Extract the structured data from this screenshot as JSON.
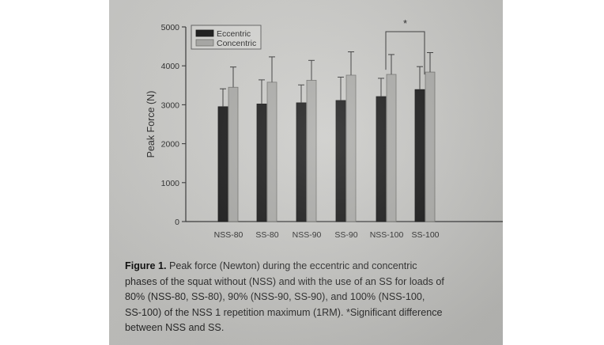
{
  "chart_data": {
    "type": "bar",
    "categories": [
      "NSS-80",
      "SS-80",
      "NSS-90",
      "SS-90",
      "NSS-100",
      "SS-100"
    ],
    "series": [
      {
        "name": "Eccentric",
        "values": [
          2950,
          3020,
          3050,
          3110,
          3210,
          3390
        ],
        "error": [
          460,
          620,
          460,
          600,
          470,
          590
        ],
        "color": "#151515"
      },
      {
        "name": "Concentric",
        "values": [
          3450,
          3580,
          3630,
          3760,
          3780,
          3840
        ],
        "error": [
          520,
          650,
          510,
          600,
          510,
          500
        ],
        "color": "#a9a9a6"
      }
    ],
    "ylabel": "Peak Force (N)",
    "xlabel": "",
    "ylim": [
      0,
      5000
    ],
    "yticks": [
      0,
      1000,
      2000,
      3000,
      4000,
      5000
    ],
    "legend_position": "top-left",
    "grid": false,
    "annotations": [
      {
        "text": "*",
        "between": [
          "NSS-100",
          "SS-100"
        ]
      }
    ]
  },
  "caption": {
    "label": "Figure 1.",
    "text": " Peak force (Newton) during the eccentric and concentric\nphases of the squat without (NSS) and with the use of an SS for loads of\n80% (NSS-80, SS-80), 90% (NSS-90, SS-90), and 100% (NSS-100,\nSS-100) of the NSS 1 repetition maximum (1RM). *Significant difference\nbetween NSS and SS."
  }
}
